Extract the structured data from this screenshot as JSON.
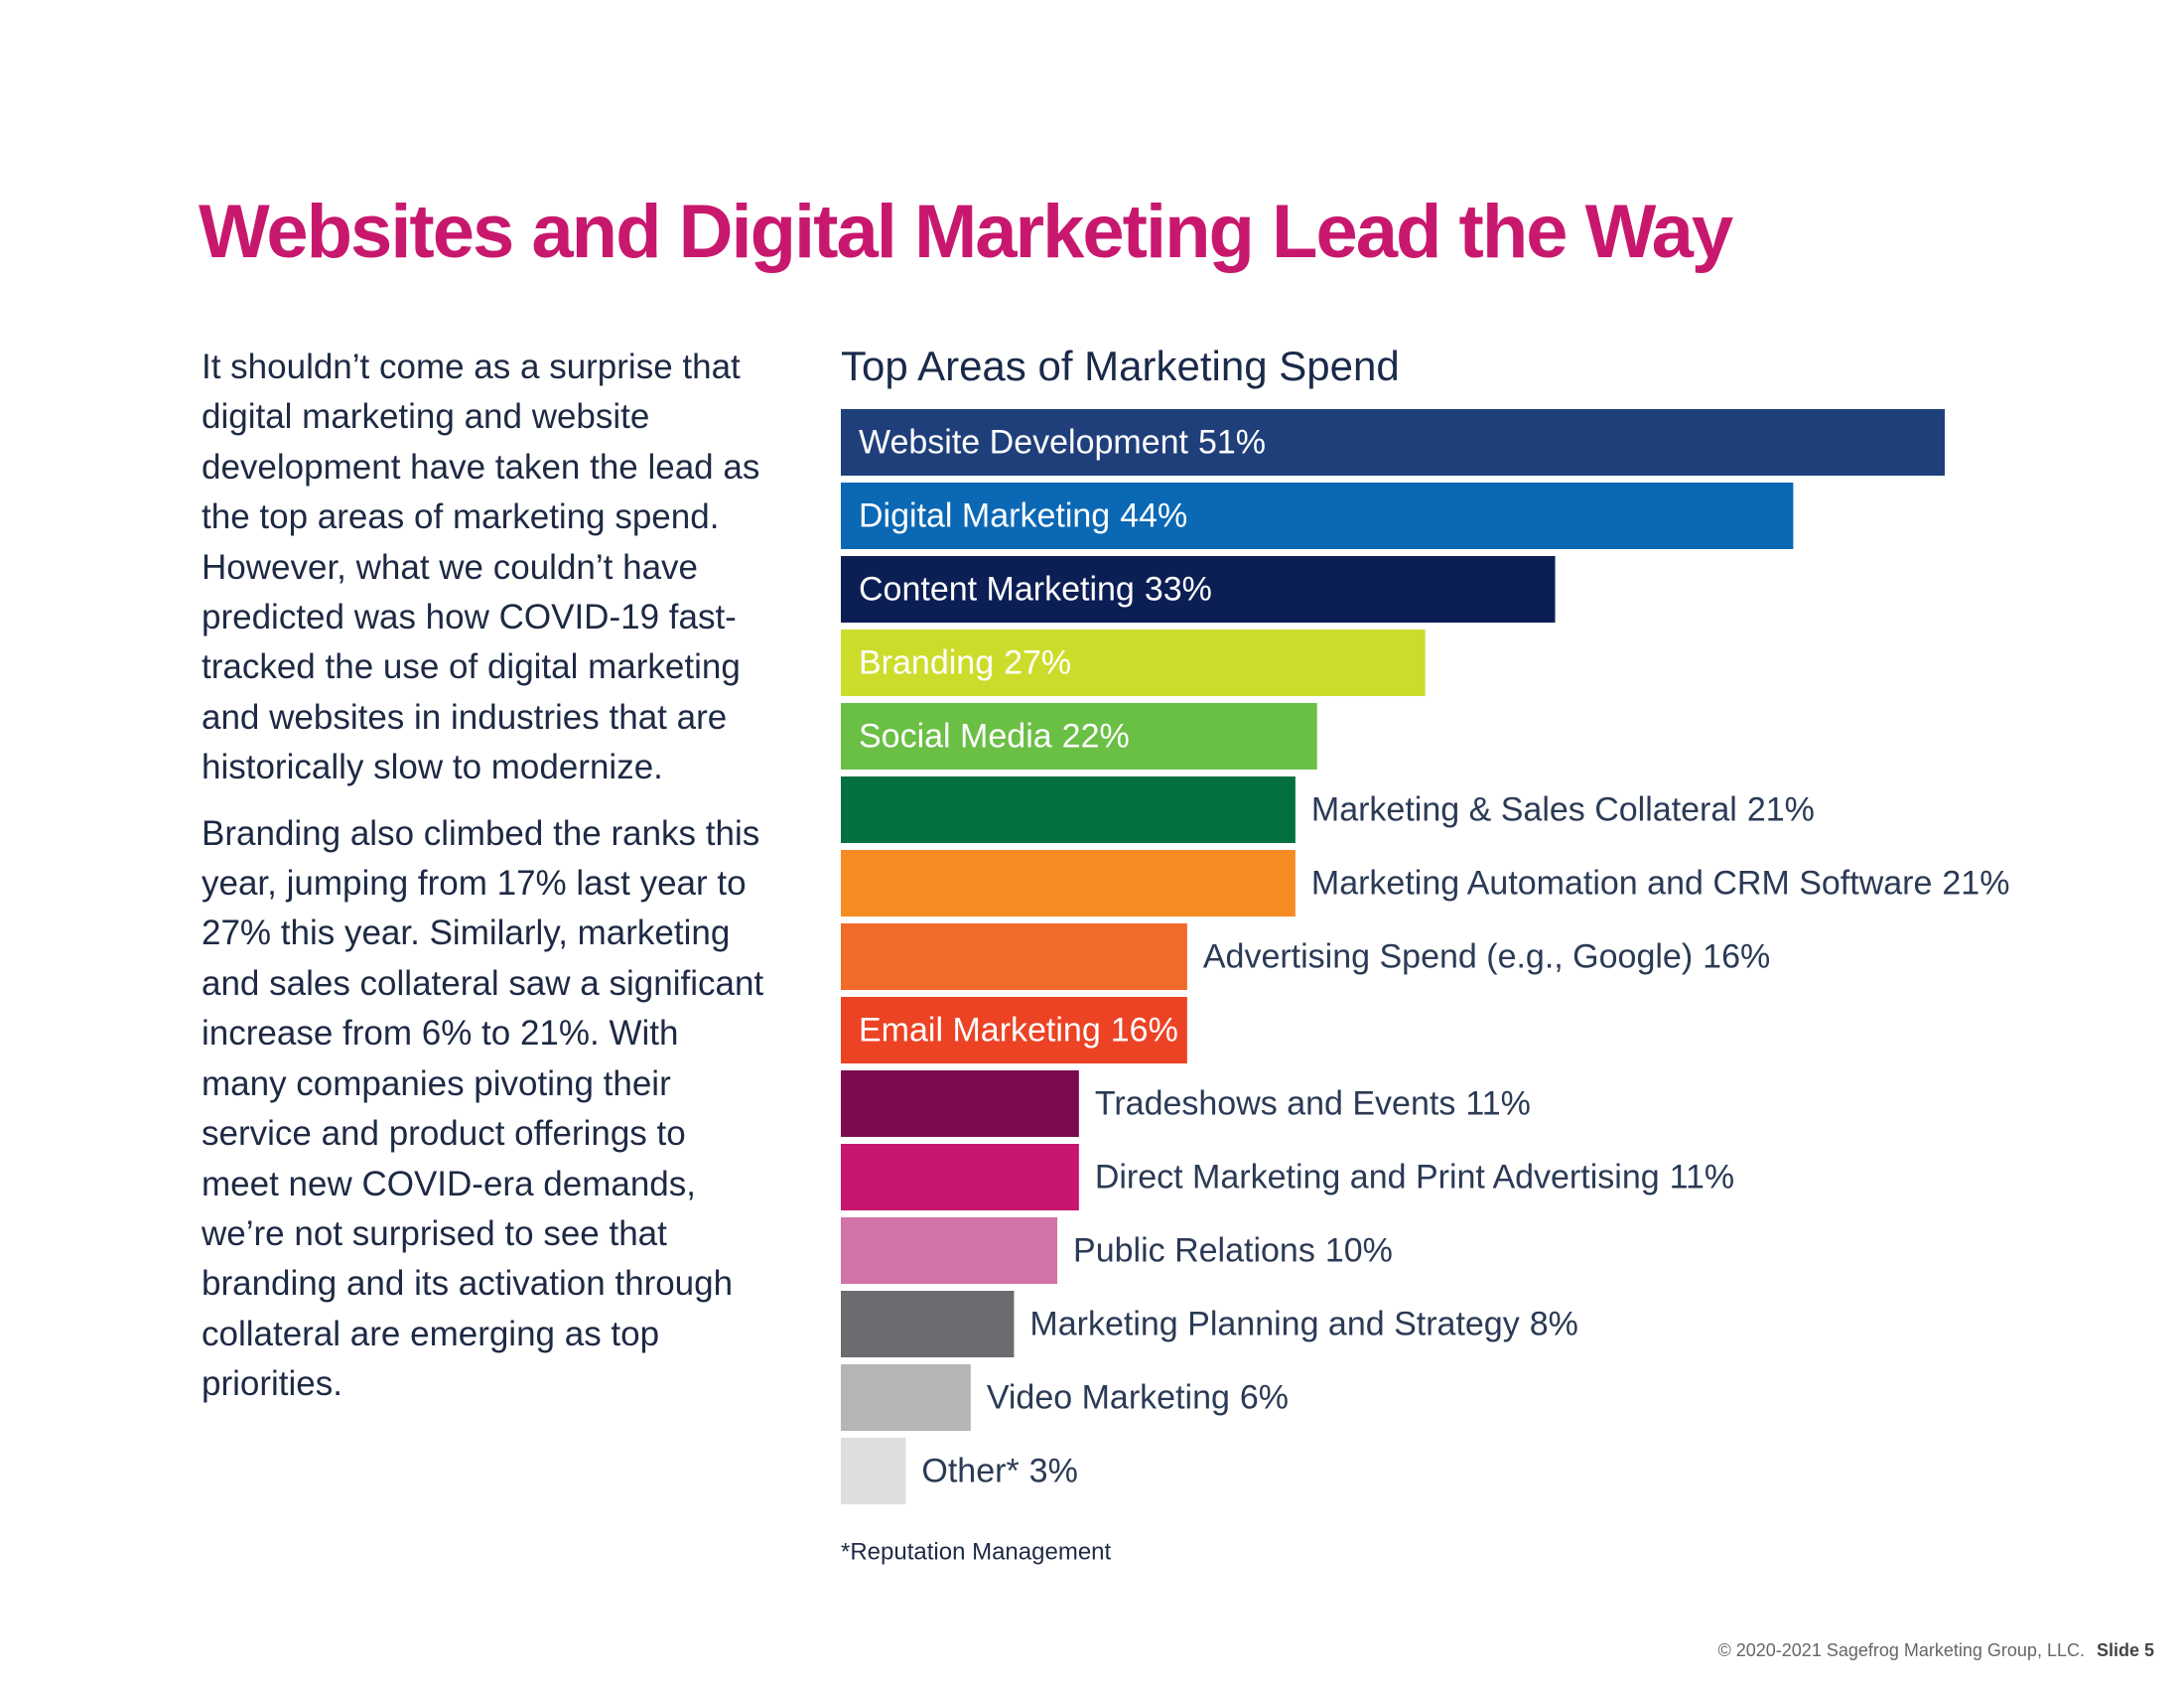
{
  "title": "Websites and Digital Marketing Lead the Way",
  "body": {
    "paragraphs": [
      "It shouldn’t come as a surprise that digital marketing and website development have taken the lead as the top areas of marketing spend. However, what we couldn’t have predicted was how COVID-19 fast-tracked the use of digital marketing and websites in industries that are historically slow to modernize.",
      "Branding also climbed the ranks this year, jumping from 17% last year to 27% this year. Similarly, marketing and sales collateral saw a significant increase from 6% to 21%. With many companies pivoting their service and product offerings to meet new COVID-era demands, we’re not surprised to see that branding and its activation through collateral are emerging as top priorities."
    ]
  },
  "chart_data": {
    "type": "bar",
    "title": "Top Areas of Marketing Spend",
    "categories": [
      "Website Development",
      "Digital Marketing",
      "Content Marketing",
      "Branding",
      "Social Media",
      "Marketing & Sales Collateral",
      "Marketing Automation and CRM Software",
      "Advertising Spend (e.g., Google)",
      "Email Marketing",
      "Tradeshows and Events",
      "Direct Marketing and Print Advertising",
      "Public Relations",
      "Marketing Planning and Strategy",
      "Video Marketing",
      "Other*"
    ],
    "values": [
      51,
      44,
      33,
      27,
      22,
      21,
      21,
      16,
      16,
      11,
      11,
      10,
      8,
      6,
      3
    ],
    "value_labels": [
      "51%",
      "44%",
      "33%",
      "27%",
      "22%",
      "21%",
      "21%",
      "16%",
      "16%",
      "11%",
      "11%",
      "10%",
      "8%",
      "6%",
      "3%"
    ],
    "colors": [
      "#1f3f7a",
      "#0a68b5",
      "#0c1f54",
      "#cddc2a",
      "#6abf45",
      "#047040",
      "#f58c22",
      "#f26a2a",
      "#ec4325",
      "#7a0c4e",
      "#c6166e",
      "#d273a7",
      "#6b6b70",
      "#b5b5b8",
      "#dedede"
    ],
    "footnote": "*Reputation Management"
  },
  "footer": {
    "copyright": "© 2020-2021 Sagefrog Marketing Group, LLC.",
    "slide": "Slide 5"
  }
}
